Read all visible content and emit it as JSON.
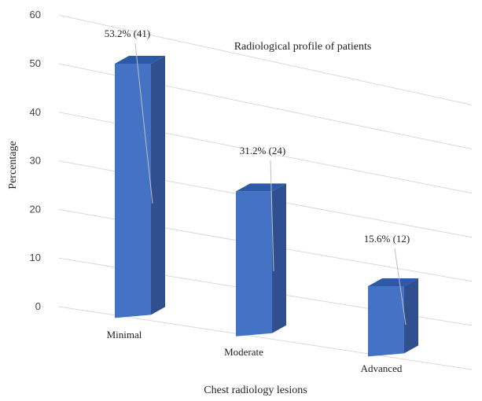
{
  "chart_data": {
    "type": "bar",
    "title": "Radiological profile of patients",
    "xlabel": "Chest radiology lesions",
    "ylabel": "Percentage",
    "categories": [
      "Minimal",
      "Moderate",
      "Advanced"
    ],
    "values": [
      53.2,
      31.2,
      15.6
    ],
    "data_labels": [
      "53.2% (41)",
      "31.2% (24)",
      "15.6% (12)"
    ],
    "yticks": [
      "0",
      "10",
      "20",
      "30",
      "40",
      "50",
      "60"
    ],
    "ylim": [
      0,
      60
    ],
    "grid": true,
    "legend": "none",
    "style": "3d-column",
    "colors": {
      "bar_front": "#4472c4",
      "bar_side": "#2f4f8f",
      "bar_top": "#2d5aa8",
      "grid": "#d9d9d9"
    }
  }
}
